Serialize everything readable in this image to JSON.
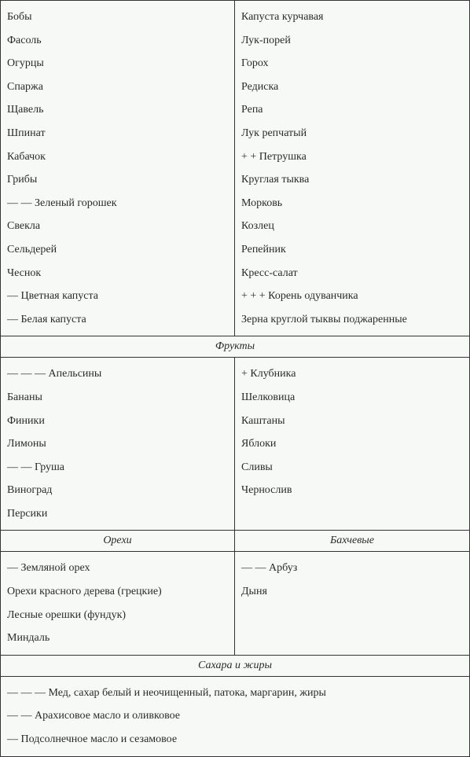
{
  "colors": {
    "background": "#f7f9f7",
    "text": "#2a2a2a",
    "border": "#333333"
  },
  "typography": {
    "font_family": "Georgia, serif",
    "font_size_pt": 11,
    "header_style": "italic"
  },
  "sections": {
    "vegetables": {
      "left": [
        "Бобы",
        "Фасоль",
        "Огурцы",
        "Спаржа",
        "Щавель",
        "Шпинат",
        "Кабачок",
        "Грибы",
        "— — Зеленый горошек",
        "Свекла",
        "Сельдерей",
        "Чеснок",
        "— Цветная капуста",
        "— Белая капуста"
      ],
      "right": [
        "Капуста курчавая",
        "Лук-порей",
        "Горох",
        "Редиска",
        "Репа",
        "Лук репчатый",
        "+ + Петрушка",
        "Круглая тыква",
        "Морковь",
        "Козлец",
        "Репейник",
        "Кресс-салат",
        "+ + + Корень одуванчика",
        "Зерна круглой тыквы поджаренные"
      ]
    },
    "fruits": {
      "header": "Фрукты",
      "left": [
        "— — — Апельсины",
        "Бананы",
        "Финики",
        "Лимоны",
        "— — Груша",
        "Виноград",
        "Персики"
      ],
      "right": [
        "+ Клубника",
        "Шелковица",
        "Каштаны",
        "Яблоки",
        "Сливы",
        "Чернослив"
      ]
    },
    "nuts_melons": {
      "left_header": "Орехи",
      "right_header": "Бахчевые",
      "left": [
        "— Земляной орех",
        "Орехи красного дерева (грецкие)",
        "Лесные орешки (фундук)",
        "Миндаль"
      ],
      "right": [
        "— — Арбуз",
        "Дыня"
      ]
    },
    "sugars_fats": {
      "header": "Сахара и жиры",
      "items": [
        "— — — Мед, сахар белый и неочищенный, патока, маргарин, жиры",
        "— — Арахисовое масло и оливковое",
        "— Подсолнечное масло и сезамовое"
      ]
    }
  }
}
